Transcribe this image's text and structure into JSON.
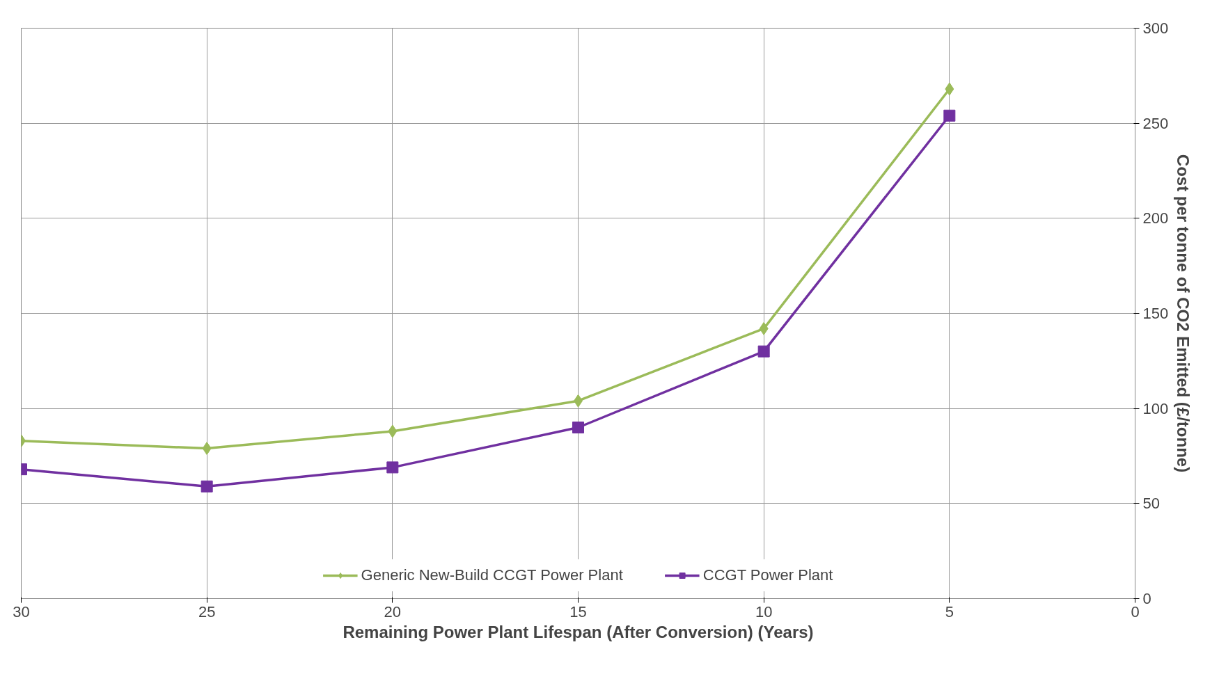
{
  "chart_data": {
    "type": "line",
    "xlabel": "Remaining Power Plant Lifespan (After Conversion) (Years)",
    "ylabel": "Cost per tonne of CO2 Emitted (£/tonne)",
    "x": [
      30,
      25,
      20,
      15,
      10,
      5
    ],
    "xlim": [
      30,
      0
    ],
    "xticks": [
      30,
      25,
      20,
      15,
      10,
      5,
      0
    ],
    "ylim": [
      0,
      300
    ],
    "yticks": [
      0,
      50,
      100,
      150,
      200,
      250,
      300
    ],
    "grid": true,
    "legend": "bottom",
    "line_style": "solid",
    "series": [
      {
        "name": "Generic New-Build CCGT Power Plant",
        "color": "#9bbb59",
        "marker": "diamond",
        "values": [
          83,
          79,
          88,
          104,
          142,
          268
        ]
      },
      {
        "name": "CCGT Power Plant",
        "color": "#7030a0",
        "marker": "square",
        "values": [
          68,
          59,
          69,
          90,
          130,
          254
        ]
      }
    ]
  }
}
